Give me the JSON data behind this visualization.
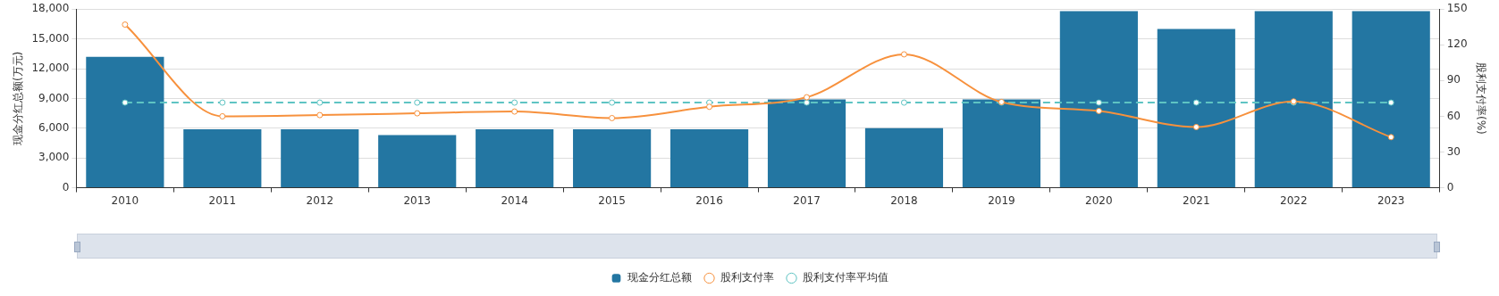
{
  "chart_data": {
    "type": "bar",
    "ylabel": "现金分红总额(万元)",
    "y2label": "股利支付率(%)",
    "categories": [
      "2010",
      "2011",
      "2012",
      "2013",
      "2014",
      "2015",
      "2016",
      "2017",
      "2018",
      "2019",
      "2020",
      "2021",
      "2022",
      "2023"
    ],
    "series": [
      {
        "name": "现金分红总额",
        "color": "#2376a2",
        "values": [
          13200,
          5900,
          5900,
          5300,
          5900,
          5900,
          5900,
          8900,
          6000,
          8900,
          17800,
          16000,
          17800,
          17800
        ]
      },
      {
        "name": "股利支付率",
        "type": "line",
        "axis": "y2",
        "color": "#f7913d",
        "marker": "circle",
        "line_style": "solid",
        "values": [
          137,
          60,
          61,
          62.5,
          64,
          58.5,
          68,
          76,
          112,
          72,
          64.5,
          51,
          72.5,
          42.5
        ]
      },
      {
        "name": "股利支付率平均值",
        "type": "line",
        "axis": "y2",
        "color": "#5ec4c3",
        "marker": "circle",
        "line_style": "dashed",
        "values": [
          71.5,
          71.5,
          71.5,
          71.5,
          71.5,
          71.5,
          71.5,
          71.5,
          71.5,
          71.5,
          71.5,
          71.5,
          71.5,
          71.5
        ]
      }
    ],
    "ylim": [
      0,
      18000
    ],
    "yticks": [
      0,
      {
        "value": 3000,
        "label": "3,000"
      },
      {
        "value": 6000,
        "label": "6,000"
      },
      {
        "value": 9000,
        "label": "9,000"
      },
      {
        "value": 12000,
        "label": "12,000"
      },
      {
        "value": 15000,
        "label": "15,000"
      },
      {
        "value": 18000,
        "label": "18,000"
      }
    ],
    "y2lim": [
      0,
      150
    ],
    "y2ticks": [
      0,
      30,
      60,
      90,
      120,
      150
    ],
    "grid": "y",
    "legend": "bottom"
  }
}
